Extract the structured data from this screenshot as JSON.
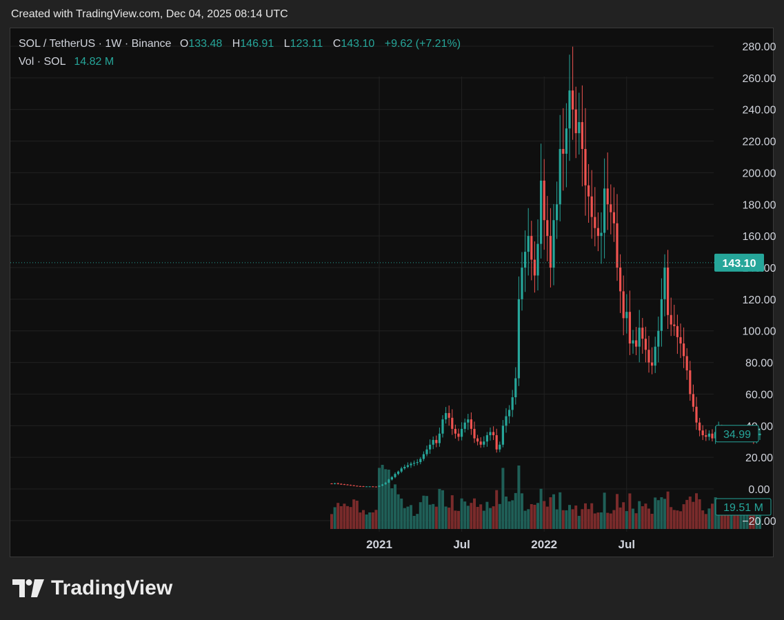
{
  "caption": "Created with TradingView.com, Dec 04, 2025 08:14 UTC",
  "brand": "TradingView",
  "legend": {
    "symbol": "SOL / TetherUS · 1W · Binance",
    "o_key": "O",
    "o": "133.48",
    "h_key": "H",
    "h": "146.91",
    "l_key": "L",
    "l": "123.11",
    "c_key": "C",
    "c": "143.10",
    "change": "+9.62 (+7.21%)",
    "vol_label": "Vol · SOL",
    "vol_value": "14.82 M"
  },
  "colors": {
    "up": "#26a69a",
    "down": "#ef5350",
    "vol_up": "#1f5f57",
    "vol_down": "#7a2b2b",
    "grid": "#222222",
    "text": "#d1d4dc",
    "background": "#0f0f0f"
  },
  "chart_data": {
    "type": "candlestick",
    "y_ticks": [
      "280.00",
      "260.00",
      "240.00",
      "220.00",
      "200.00",
      "180.00",
      "160.00",
      "140.00",
      "120.00",
      "100.00",
      "80.00",
      "60.00",
      "40.00",
      "20.00",
      "0.00",
      "−20.00"
    ],
    "ylim": [
      -20,
      290
    ],
    "x_ticks": [
      {
        "label": "2021",
        "week": 15
      },
      {
        "label": "Jul",
        "week": 41
      },
      {
        "label": "2022",
        "week": 67
      },
      {
        "label": "Jul",
        "week": 93
      }
    ],
    "price_label": "143.10",
    "price_value": 143.1,
    "secondary_label": "34.99",
    "secondary_value": 34.99,
    "volume_label": "19.51 M",
    "close": [
      3.3,
      3.6,
      3.2,
      3.0,
      2.8,
      2.5,
      2.3,
      2.0,
      1.8,
      1.7,
      1.6,
      1.6,
      1.6,
      1.5,
      1.4,
      2.0,
      2.9,
      4.0,
      6.0,
      7.5,
      9.5,
      11,
      13,
      14,
      15,
      16,
      16.5,
      17,
      19,
      22,
      25,
      28,
      31,
      29,
      35,
      44,
      48,
      45,
      38,
      35,
      33,
      38,
      42,
      44,
      38,
      32,
      30,
      28,
      30,
      34,
      36,
      34,
      25,
      28,
      40,
      46,
      50,
      58,
      70,
      120,
      140,
      150,
      160,
      145,
      135,
      155,
      195,
      170,
      160,
      140,
      170,
      180,
      215,
      212,
      228,
      252,
      240,
      225,
      232,
      215,
      192,
      185,
      172,
      165,
      160,
      162,
      190,
      180,
      175,
      168,
      140,
      125,
      108,
      112,
      92,
      94,
      90,
      102,
      95,
      88,
      80,
      78,
      90,
      100,
      120,
      140,
      110,
      104,
      103,
      96,
      92,
      84,
      75,
      60,
      52,
      42,
      37,
      34,
      33,
      35,
      32,
      36,
      38,
      36,
      34,
      33,
      35,
      34,
      33,
      34,
      36,
      37,
      36,
      32,
      34,
      35
    ]
  }
}
